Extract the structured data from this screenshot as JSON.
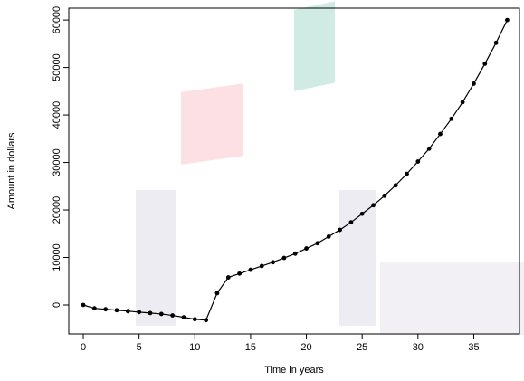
{
  "chart_data": {
    "type": "line",
    "x_label": "Time in years",
    "y_label": "Amount in dollars",
    "x": [
      0,
      1,
      2,
      3,
      4,
      5,
      6,
      7,
      8,
      9,
      10,
      11,
      12,
      13,
      14,
      15,
      16,
      17,
      18,
      19,
      20,
      21,
      22,
      23,
      24,
      25,
      26,
      27,
      28,
      29,
      30,
      31,
      32,
      33,
      34,
      35,
      36,
      37,
      38
    ],
    "series": [
      {
        "color": "#000000",
        "values": [
          0,
          -700,
          -900,
          -1100,
          -1300,
          -1500,
          -1700,
          -1900,
          -2200,
          -2600,
          -3000,
          -3200,
          2500,
          5800,
          6600,
          7400,
          8200,
          9000,
          9900,
          10800,
          11900,
          13000,
          14400,
          15800,
          17400,
          19200,
          21000,
          23000,
          25200,
          27600,
          30200,
          32900,
          36000,
          39200,
          42700,
          46600,
          50800,
          55200,
          60000
        ]
      }
    ],
    "xlim": [
      -1.3,
      39.1
    ],
    "ylim": [
      -6100,
      62500
    ],
    "xticks": [
      0,
      5,
      10,
      15,
      20,
      25,
      30,
      35
    ],
    "yticks": [
      0,
      10000,
      20000,
      30000,
      40000,
      50000,
      60000
    ]
  }
}
